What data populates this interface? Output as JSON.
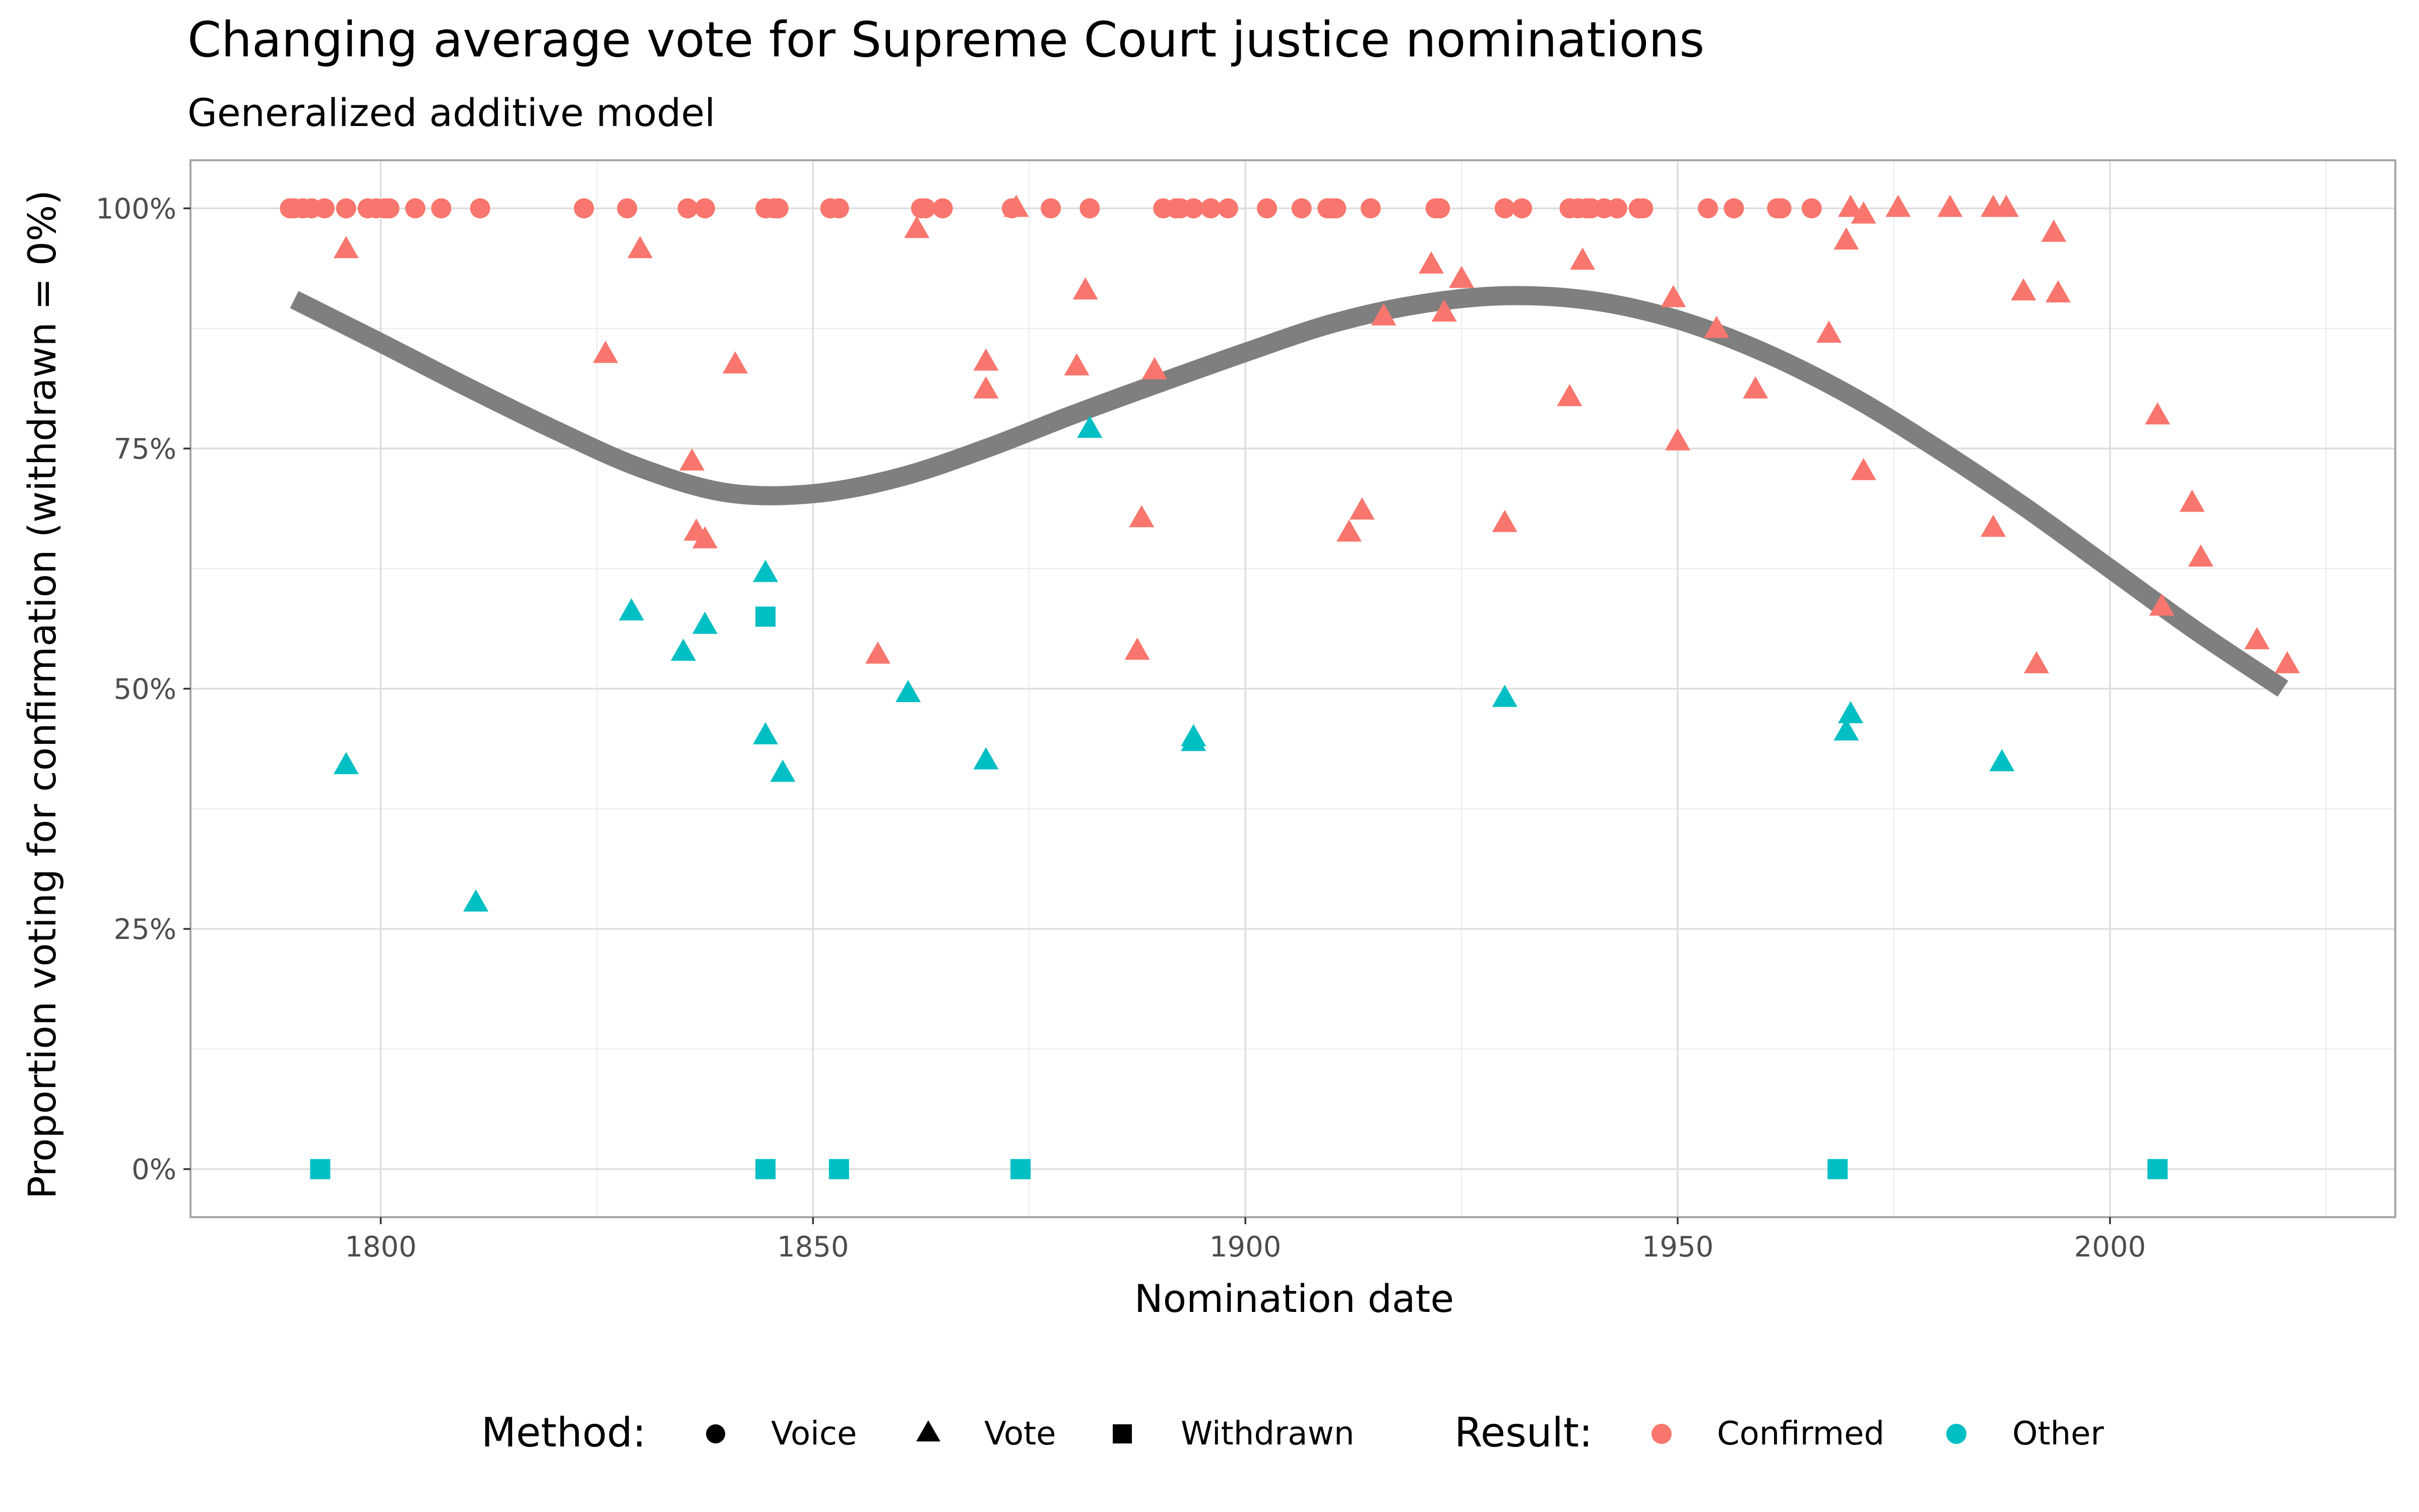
{
  "chart_data": {
    "type": "scatter",
    "title": "Changing average vote for Supreme Court justice nominations",
    "subtitle": "Generalized additive model",
    "xlabel": "Nomination date",
    "ylabel": "Proportion voting for confirmation (withdrawn = 0%)",
    "xlim": [
      1778,
      2033
    ],
    "ylim": [
      -0.05,
      1.05
    ],
    "x_ticks": [
      1800,
      1850,
      1900,
      1950,
      2000
    ],
    "x_tick_labels": [
      "1800",
      "1850",
      "1900",
      "1950",
      "2000"
    ],
    "y_ticks": [
      0,
      0.25,
      0.5,
      0.75,
      1
    ],
    "y_tick_labels": [
      "0%",
      "25%",
      "50%",
      "75%",
      "100%"
    ],
    "grid": true,
    "legend_position": "bottom",
    "legend": {
      "method_title": "Method:",
      "method_items": [
        {
          "key": "Voice",
          "label": "Voice",
          "shape": "circle"
        },
        {
          "key": "Vote",
          "label": "Vote",
          "shape": "triangle"
        },
        {
          "key": "Withdrawn",
          "label": "Withdrawn",
          "shape": "square"
        }
      ],
      "result_title": "Result:",
      "result_items": [
        {
          "key": "Confirmed",
          "label": "Confirmed",
          "color": "#F8766D"
        },
        {
          "key": "Other",
          "label": "Other",
          "color": "#00BFC4"
        }
      ]
    },
    "colors": {
      "Confirmed": "#F8766D",
      "Other": "#00BFC4",
      "smooth": "#7f7f7f"
    },
    "series": [
      {
        "method": "Voice",
        "result": "Confirmed",
        "x": [
          1789.5,
          1790,
          1791,
          1792,
          1793.5,
          1796,
          1798.5,
          1799.5,
          1800.5,
          1801,
          1804,
          1807,
          1811.5,
          1823.5,
          1828.5,
          1835.5,
          1837.5,
          1844.5,
          1845.5,
          1846,
          1852,
          1853,
          1862.5,
          1863,
          1865,
          1873,
          1877.5,
          1882,
          1890.5,
          1892,
          1892.5,
          1894,
          1896,
          1898,
          1902.5,
          1906.5,
          1909.5,
          1910,
          1910.5,
          1914.5,
          1922,
          1922.5,
          1930,
          1932,
          1937.5,
          1938.5,
          1939.5,
          1940,
          1941.5,
          1943,
          1945.5,
          1946,
          1953.5,
          1956.5,
          1961.5,
          1962,
          1965.5
        ],
        "y": [
          1,
          1,
          1,
          1,
          1,
          1,
          1,
          1,
          1,
          1,
          1,
          1,
          1,
          1,
          1,
          1,
          1,
          1,
          1,
          1,
          1,
          1,
          1,
          1,
          1,
          1,
          1,
          1,
          1,
          1,
          1,
          1,
          1,
          1,
          1,
          1,
          1,
          1,
          1,
          1,
          1,
          1,
          1,
          1,
          1,
          1,
          1,
          1,
          1,
          1,
          1,
          1,
          1,
          1,
          1,
          1,
          1
        ]
      },
      {
        "method": "Vote",
        "result": "Confirmed",
        "x": [
          1796,
          1826,
          1830,
          1836,
          1836.5,
          1837.5,
          1841,
          1857.5,
          1862,
          1870,
          1870,
          1873.5,
          1880.5,
          1881.5,
          1887.5,
          1888,
          1889.5,
          1912,
          1913.5,
          1916,
          1921.5,
          1923,
          1925,
          1930,
          1937.5,
          1939,
          1949.5,
          1950,
          1954.5,
          1959,
          1967.5,
          1969.5,
          1970,
          1971.5,
          1971.5,
          1975.5,
          1981.5,
          1986.5,
          1986.5,
          1988,
          1990,
          1991.5,
          1993.5,
          1994,
          2005.5,
          2006,
          2009.5,
          2010.5,
          2017,
          2020.5
        ],
        "y": [
          0.957,
          0.848,
          0.957,
          0.736,
          0.663,
          0.655,
          0.837,
          0.535,
          0.978,
          0.84,
          0.811,
          1,
          0.835,
          0.914,
          0.539,
          0.677,
          0.831,
          0.662,
          0.685,
          0.887,
          0.941,
          0.891,
          0.926,
          0.672,
          0.803,
          0.945,
          0.906,
          0.757,
          0.874,
          0.811,
          0.869,
          0.966,
          1,
          0.726,
          0.993,
          1,
          1,
          1,
          0.667,
          1,
          0.913,
          0.525,
          0.974,
          0.911,
          0.784,
          0.585,
          0.693,
          0.636,
          0.55,
          0.525
        ]
      },
      {
        "method": "Vote",
        "result": "Other",
        "x": [
          1796,
          1811,
          1829,
          1835,
          1837.5,
          1844.5,
          1844.5,
          1846.5,
          1861,
          1870,
          1882,
          1894,
          1894,
          1930,
          1969.5,
          1970,
          1987.5
        ],
        "y": [
          0.42,
          0.277,
          0.58,
          0.538,
          0.566,
          0.451,
          0.62,
          0.412,
          0.495,
          0.425,
          0.77,
          0.449,
          0.444,
          0.49,
          0.455,
          0.473,
          0.423
        ]
      },
      {
        "method": "Withdrawn",
        "result": "Other",
        "x": [
          1793,
          1844.5,
          1844.5,
          1853,
          1874,
          1968.5,
          2005.5
        ],
        "y": [
          0,
          0.575,
          0,
          0,
          0,
          0,
          0
        ]
      }
    ],
    "smooth": {
      "label": "",
      "x": [
        1790,
        1800,
        1810,
        1820,
        1830,
        1840,
        1850,
        1860,
        1870,
        1880,
        1890,
        1900,
        1910,
        1920,
        1930,
        1940,
        1950,
        1960,
        1970,
        1980,
        1990,
        2000,
        2010,
        2020
      ],
      "y": [
        0.905,
        0.86,
        0.814,
        0.77,
        0.73,
        0.704,
        0.703,
        0.72,
        0.75,
        0.785,
        0.818,
        0.85,
        0.88,
        0.9,
        0.909,
        0.904,
        0.884,
        0.85,
        0.805,
        0.75,
        0.69,
        0.625,
        0.56,
        0.5
      ]
    }
  }
}
